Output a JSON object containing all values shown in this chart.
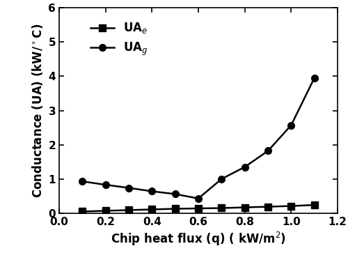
{
  "UAe_x": [
    0.1,
    0.2,
    0.3,
    0.4,
    0.5,
    0.6,
    0.7,
    0.8,
    0.9,
    1.0,
    1.1
  ],
  "UAe_y": [
    0.05,
    0.07,
    0.09,
    0.11,
    0.13,
    0.14,
    0.15,
    0.17,
    0.19,
    0.21,
    0.24
  ],
  "UAg_x": [
    0.1,
    0.2,
    0.3,
    0.4,
    0.5,
    0.6,
    0.7,
    0.8,
    0.9,
    1.0,
    1.1
  ],
  "UAg_y": [
    0.93,
    0.83,
    0.74,
    0.64,
    0.56,
    0.43,
    1.0,
    1.35,
    1.82,
    2.57,
    3.95
  ],
  "xlabel": "Chip heat flux (q) ( kW/m$^2$)",
  "ylabel": "Conductance (UA) (kW/$^\\circ$C)",
  "xlim": [
    0.0,
    1.2
  ],
  "ylim": [
    0,
    6
  ],
  "xticks": [
    0.0,
    0.2,
    0.4,
    0.6,
    0.8,
    1.0,
    1.2
  ],
  "yticks": [
    0,
    1,
    2,
    3,
    4,
    5,
    6
  ],
  "legend_UAe": "UA$_e$",
  "legend_UAg": "UA$_g$",
  "line_color": "#000000",
  "marker_square": "s",
  "marker_circle": "o",
  "marker_size": 7,
  "linewidth": 1.8,
  "label_fontsize": 12,
  "tick_fontsize": 11,
  "legend_fontsize": 12,
  "background_color": "#ffffff"
}
